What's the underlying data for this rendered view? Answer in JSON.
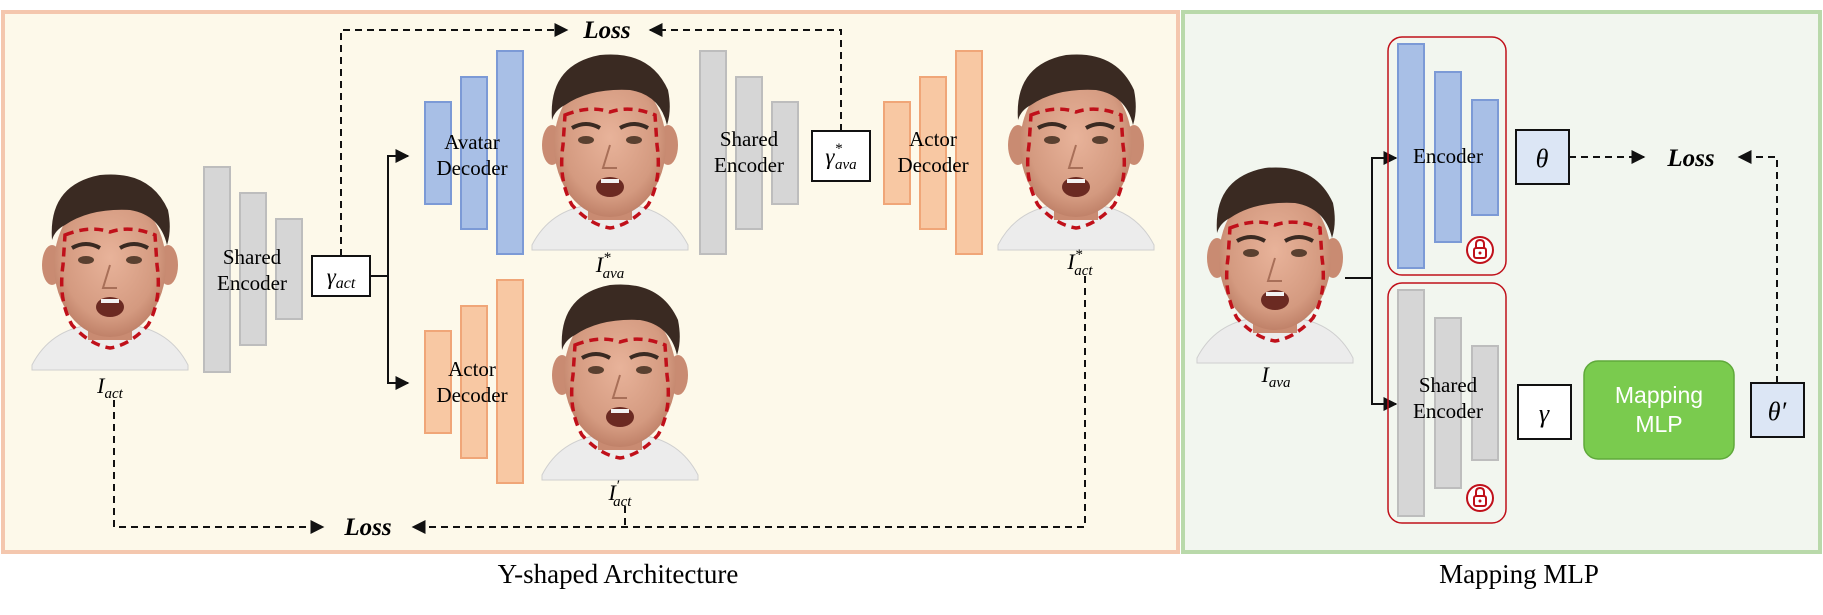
{
  "panels": {
    "left_caption": "Y-shaped Architecture",
    "right_caption": "Mapping MLP"
  },
  "left": {
    "shared_encoder_label": [
      "Shared",
      "Encoder"
    ],
    "gamma_act": {
      "base": "γ",
      "sub": "act"
    },
    "avatar_decoder_label": [
      "Avatar",
      "Decoder"
    ],
    "actor_decoder_top_label": [
      "Actor",
      "Decoder"
    ],
    "actor_decoder_bottom_label": [
      "Actor",
      "Decoder"
    ],
    "shared_encoder2_label": [
      "Shared",
      "Encoder"
    ],
    "gamma_ava_star": {
      "base": "γ",
      "sup": "*",
      "sub": "ava"
    },
    "input_label": {
      "base": "I",
      "sub": "act"
    },
    "ava_star_label": {
      "base": "I",
      "sup": "*",
      "sub": "ava"
    },
    "act_star_label": {
      "base": "I",
      "sup": "*",
      "sub": "act"
    },
    "act_prime_label": {
      "base": "I",
      "sup": "′",
      "sub": "act"
    },
    "loss_top": "Loss",
    "loss_bottom": "Loss"
  },
  "right": {
    "encoder_label": "Encoder",
    "shared_encoder_label": [
      "Shared",
      "Encoder"
    ],
    "theta": "θ",
    "theta_prime": "θ′",
    "gamma": "γ",
    "mlp_label": [
      "Mapping",
      "MLP"
    ],
    "loss": "Loss",
    "input_label": {
      "base": "I",
      "sub": "ava"
    }
  },
  "colors": {
    "left_bg": "#FDF9EA",
    "left_border": "#F4C7AE",
    "right_bg": "#F2F6EF",
    "right_border": "#B9D9AA",
    "blue_fill": "#A8BFE6",
    "blue_stroke": "#7C9AD6",
    "orange_fill": "#F8C8A3",
    "orange_stroke": "#F0A678",
    "gray_fill": "#D6D6D6",
    "gray_stroke": "#BDBDBD",
    "mlp_fill": "#7ACB4E",
    "theta_fill": "#DCE6F5",
    "lock_red": "#C0101A"
  }
}
